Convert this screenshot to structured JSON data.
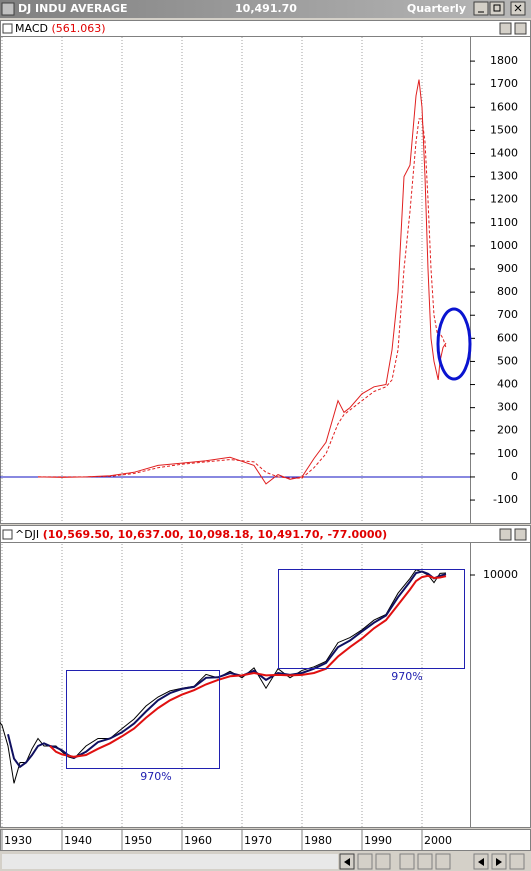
{
  "window": {
    "title": "DJ INDU AVERAGE",
    "value": "10,491.70",
    "period": "Quarterly"
  },
  "chart_data": [
    {
      "type": "line",
      "title": "MACD",
      "title_value": "(561.063)",
      "x": [
        1936,
        1940,
        1944,
        1948,
        1952,
        1956,
        1960,
        1964,
        1968,
        1972,
        1974,
        1976,
        1978,
        1980,
        1982,
        1984,
        1986,
        1987,
        1988,
        1990,
        1992,
        1994,
        1995,
        1996,
        1997,
        1998,
        1999,
        1999.5,
        2000,
        2000.5,
        2001,
        2001.5,
        2002,
        2002.7,
        2003,
        2003.5,
        2004
      ],
      "series": [
        {
          "color": "#e02020",
          "style": "solid",
          "values": [
            0,
            -2,
            0,
            5,
            20,
            50,
            60,
            70,
            85,
            50,
            -30,
            10,
            -10,
            0,
            80,
            150,
            330,
            280,
            300,
            360,
            390,
            400,
            550,
            800,
            1300,
            1350,
            1650,
            1720,
            1600,
            1300,
            900,
            600,
            500,
            420,
            500,
            560,
            580
          ]
        },
        {
          "color": "#e02020",
          "style": "dashed",
          "values": [
            0,
            0,
            0,
            3,
            15,
            40,
            55,
            65,
            75,
            65,
            20,
            0,
            -5,
            -5,
            40,
            100,
            230,
            270,
            290,
            330,
            370,
            390,
            420,
            550,
            900,
            1150,
            1450,
            1550,
            1550,
            1450,
            1200,
            900,
            700,
            600,
            620,
            600,
            560
          ]
        }
      ],
      "xlim": [
        1930,
        2008
      ],
      "xticks": [
        1930,
        1940,
        1950,
        1960,
        1970,
        1980,
        1990,
        2000
      ],
      "ylim": [
        -195,
        1900
      ],
      "yticks": [
        1800,
        1700,
        1600,
        1500,
        1400,
        1300,
        1200,
        1100,
        1000,
        900,
        800,
        700,
        600,
        500,
        400,
        300,
        200,
        100,
        0,
        -100
      ],
      "zero_line_color": "#1010c0"
    },
    {
      "type": "line",
      "title": "^DJI",
      "title_value": "(10,569.50, 10,637.00, 10,098.18, 10,491.70, -77.0000)",
      "x": [
        1929,
        1930,
        1931,
        1932,
        1933,
        1934,
        1935,
        1936,
        1937,
        1938,
        1939,
        1940,
        1941,
        1942,
        1944,
        1946,
        1948,
        1950,
        1952,
        1954,
        1956,
        1958,
        1960,
        1962,
        1964,
        1966,
        1968,
        1970,
        1972,
        1974,
        1976,
        1978,
        1980,
        1982,
        1984,
        1986,
        1988,
        1990,
        1992,
        1994,
        1996,
        1998,
        1999,
        2000,
        2001,
        2002,
        2003,
        2004
      ],
      "series": [
        {
          "color": "#000000",
          "values": [
            300,
            250,
            150,
            60,
            100,
            100,
            140,
            180,
            150,
            150,
            150,
            130,
            115,
            110,
            150,
            180,
            180,
            230,
            290,
            400,
            500,
            580,
            620,
            650,
            870,
            800,
            940,
            800,
            1020,
            620,
            1000,
            800,
            960,
            1050,
            1200,
            1900,
            2150,
            2600,
            3300,
            3800,
            6400,
            9200,
            11400,
            10800,
            10000,
            8300,
            10400,
            10500
          ]
        },
        {
          "color": "#101060",
          "values": [
            null,
            null,
            200,
            110,
            90,
            100,
            120,
            150,
            160,
            150,
            145,
            135,
            120,
            112,
            130,
            165,
            180,
            210,
            260,
            350,
            460,
            550,
            610,
            640,
            800,
            810,
            900,
            840,
            950,
            760,
            900,
            860,
            900,
            1000,
            1150,
            1700,
            2000,
            2500,
            3100,
            3700,
            5800,
            8500,
            10500,
            10900,
            10300,
            9200,
            9800,
            10200
          ]
        },
        {
          "color": "#e01010",
          "values": [
            null,
            null,
            null,
            null,
            null,
            null,
            null,
            null,
            null,
            150,
            130,
            122,
            118,
            115,
            120,
            140,
            160,
            190,
            230,
            300,
            380,
            460,
            530,
            590,
            680,
            760,
            830,
            850,
            900,
            850,
            860,
            850,
            860,
            900,
            1000,
            1350,
            1700,
            2100,
            2700,
            3300,
            4800,
            7000,
            8600,
            9500,
            9800,
            9300,
            9400,
            9700
          ]
        }
      ],
      "log_scale": true,
      "xlim": [
        1930,
        2008
      ],
      "xticks": [
        1930,
        1940,
        1950,
        1960,
        1970,
        1980,
        1990,
        2000
      ],
      "ylim": [
        21,
        20900
      ],
      "yticks": [
        10000
      ],
      "annotations": [
        "970%",
        "970%"
      ]
    }
  ]
}
